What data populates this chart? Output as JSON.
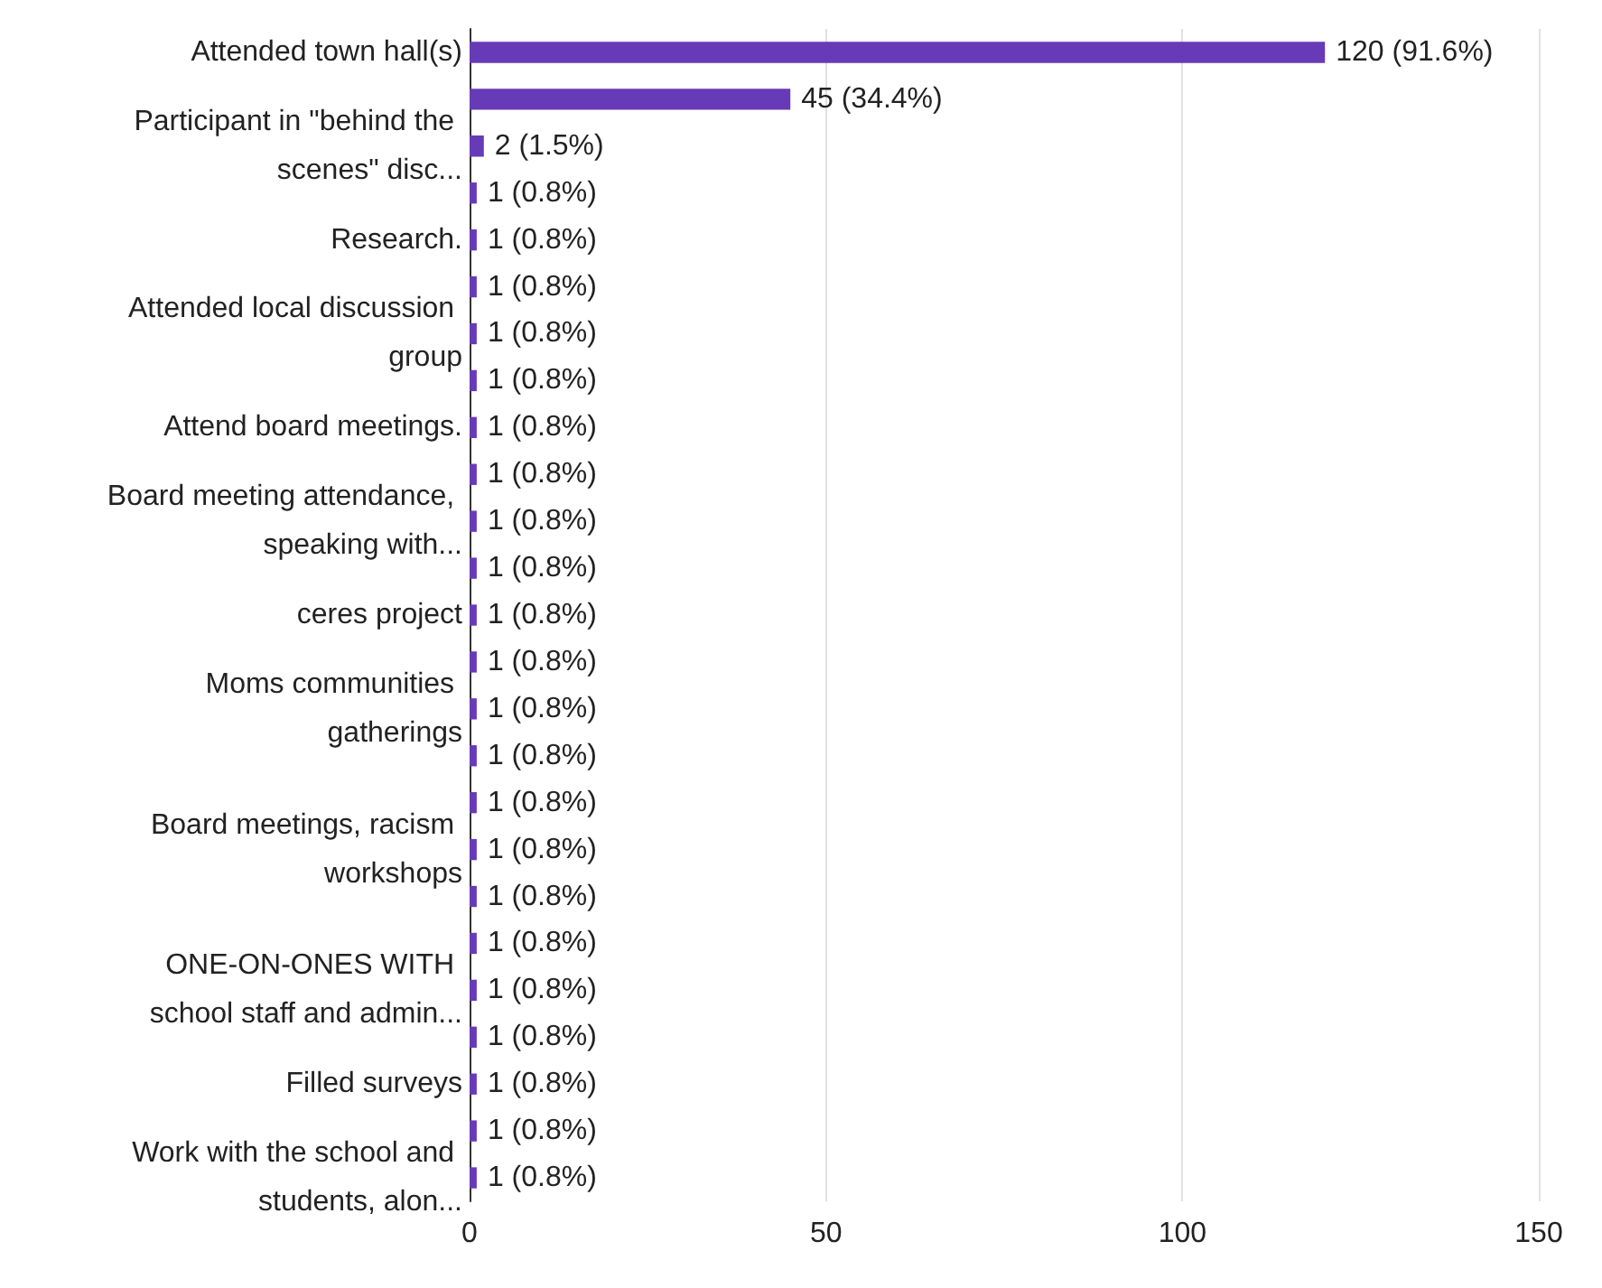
{
  "chart_data": {
    "type": "bar",
    "orientation": "horizontal",
    "color": "#673ab7",
    "categories": [
      "Attended town hall(s)",
      null,
      "Participant in \"behind the scenes\" disc...",
      null,
      "Research.",
      null,
      "Attended local discussion group",
      null,
      "Attend board meetings.",
      null,
      "Board meeting attendance, speaking with...",
      null,
      "ceres project",
      null,
      "Moms communities gatherings",
      null,
      null,
      "Board meetings, racism workshops",
      null,
      null,
      "ONE-ON-ONES WITH school staff and admin...",
      null,
      "Filled surveys",
      null,
      "Work with the school and students, alon..."
    ],
    "values": [
      120,
      45,
      2,
      1,
      1,
      1,
      1,
      1,
      1,
      1,
      1,
      1,
      1,
      1,
      1,
      1,
      1,
      1,
      1,
      1,
      1,
      1,
      1,
      1,
      1
    ],
    "value_labels": [
      "120 (91.6%)",
      "45 (34.4%)",
      "2 (1.5%)",
      "1 (0.8%)",
      "1 (0.8%)",
      "1 (0.8%)",
      "1 (0.8%)",
      "1 (0.8%)",
      "1 (0.8%)",
      "1 (0.8%)",
      "1 (0.8%)",
      "1 (0.8%)",
      "1 (0.8%)",
      "1 (0.8%)",
      "1 (0.8%)",
      "1 (0.8%)",
      "1 (0.8%)",
      "1 (0.8%)",
      "1 (0.8%)",
      "1 (0.8%)",
      "1 (0.8%)",
      "1 (0.8%)",
      "1 (0.8%)",
      "1 (0.8%)",
      "1 (0.8%)"
    ],
    "xlim": [
      0,
      150
    ],
    "xticks": [
      0,
      50,
      100,
      150
    ],
    "grid": "x"
  }
}
